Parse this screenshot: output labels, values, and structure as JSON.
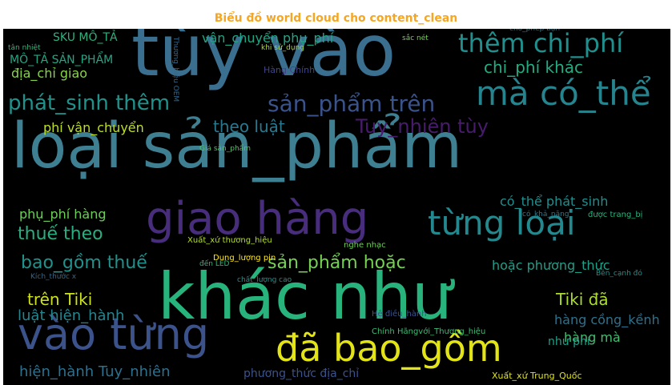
{
  "title": "Biểu đồ world cloud cho content_clean",
  "chart_data": {
    "type": "wordcloud",
    "background": "#000000",
    "title_color": "#f5a623",
    "words": [
      {
        "text": "loại sản_phẩm",
        "color": "#3e7f92"
      },
      {
        "text": "khác như",
        "color": "#27b37b"
      },
      {
        "text": "tùy vào",
        "color": "#3b6f8f"
      },
      {
        "text": "giao hàng",
        "color": "#472d7b"
      },
      {
        "text": "vào từng",
        "color": "#3b528b"
      },
      {
        "text": "đã bao_gồm",
        "color": "#e3e418"
      },
      {
        "text": "mà có_thể",
        "color": "#26848e"
      },
      {
        "text": "từng loại",
        "color": "#23898e"
      },
      {
        "text": "thêm chi_phí",
        "color": "#218f8d"
      },
      {
        "text": "sản_phẩm trên",
        "color": "#3a538b"
      },
      {
        "text": "phát_sinh thêm",
        "color": "#20928c"
      },
      {
        "text": "Tuy_nhiên tùy",
        "color": "#481b6d"
      },
      {
        "text": "chi_phí khác",
        "color": "#25ab82"
      },
      {
        "text": "theo luật",
        "color": "#2a788e"
      },
      {
        "text": "thuế theo",
        "color": "#28ae80"
      },
      {
        "text": "bao_gồm thuế",
        "color": "#21918c"
      },
      {
        "text": "sản_phẩm hoặc",
        "color": "#75d054"
      },
      {
        "text": "trên Tiki",
        "color": "#cde11d"
      },
      {
        "text": "Tiki đã",
        "color": "#addc30"
      },
      {
        "text": "luật hiện_hành",
        "color": "#25858e"
      },
      {
        "text": "hiện_hành Tuy_nhiên",
        "color": "#2d708e"
      },
      {
        "text": "phí vận_chuyển",
        "color": "#bddf26"
      },
      {
        "text": "vận_chuyển phụ_phí",
        "color": "#21a685"
      },
      {
        "text": "MÔ_TẢ SẢN_PHẨM",
        "color": "#22a785"
      },
      {
        "text": "địa_chỉ giao",
        "color": "#86d549"
      },
      {
        "text": "SKU MÔ_TẢ",
        "color": "#2db27d"
      },
      {
        "text": "có_thể phát_sinh",
        "color": "#228d8d"
      },
      {
        "text": "phụ_phí hàng",
        "color": "#6ccd5a"
      },
      {
        "text": "hoặc phương_thức",
        "color": "#1f9e89"
      },
      {
        "text": "hàng cồng_kềnh",
        "color": "#2c728e"
      },
      {
        "text": "hàng mà",
        "color": "#42be71"
      },
      {
        "text": "như phí",
        "color": "#1fa088"
      },
      {
        "text": "phương_thức địa_chỉ",
        "color": "#3b528b"
      },
      {
        "text": "Xuất_xứ Trung_Quốc",
        "color": "#dde318"
      },
      {
        "text": "tân nhiệt",
        "color": "#35b779"
      },
      {
        "text": "sắc nét",
        "color": "#73d056"
      },
      {
        "text": "cho_phép bạn",
        "color": "#2a788e"
      },
      {
        "text": "Bên_cạnh đó",
        "color": "#21918c"
      },
      {
        "text": "Hàng Chính",
        "color": "#414487"
      },
      {
        "text": "Giá sản_phẩm",
        "color": "#52c569"
      },
      {
        "text": "Xuất_xứ thương_hiệu",
        "color": "#b5de2b"
      },
      {
        "text": "Chính Hãngvới_Thương_hiệu",
        "color": "#3dbc74"
      },
      {
        "text": "Dung_lượng pin",
        "color": "#fde725"
      },
      {
        "text": "Thương_hiệu OEM",
        "color": "#31688e"
      },
      {
        "text": "được trang_bị",
        "color": "#2db27d"
      },
      {
        "text": "mây_tính bảng",
        "color": "#c2df23"
      },
      {
        "text": "Kích_thước x",
        "color": "#31688e"
      },
      {
        "text": "nghe nhạc",
        "color": "#6ece58"
      },
      {
        "text": "đến LED",
        "color": "#35b779"
      },
      {
        "text": "Hệ điều_hành",
        "color": "#3b528b"
      },
      {
        "text": "có_khả_năng",
        "color": "#2a788e"
      },
      {
        "text": "khi sử_dụng",
        "color": "#addc30"
      },
      {
        "text": "chất_lượng cao",
        "color": "#21918c"
      }
    ]
  }
}
